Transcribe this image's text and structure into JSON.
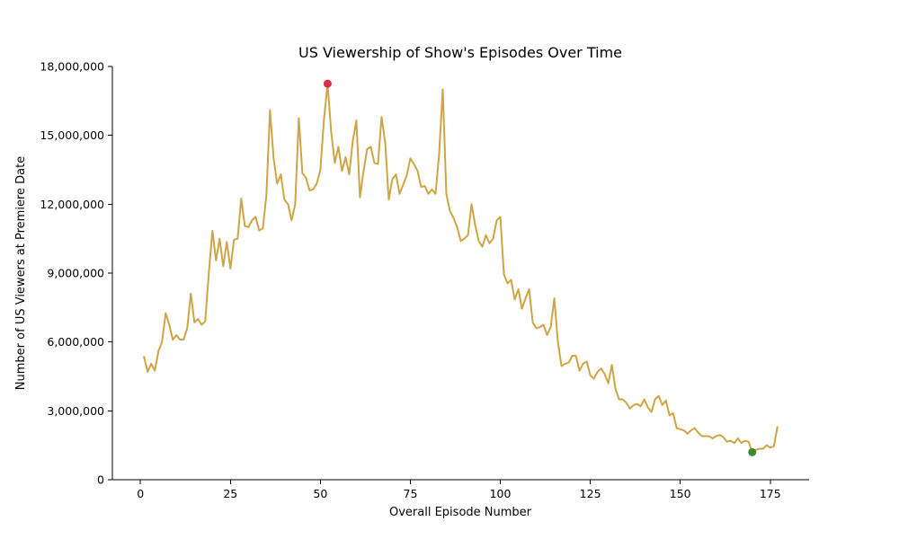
{
  "chart_data": {
    "type": "line",
    "title": "US Viewership of Show's Episodes Over Time",
    "xlabel": "Overall Episode Number",
    "ylabel": "Number of US Viewers at Premiere Date",
    "xlim": [
      -7.8,
      185.8
    ],
    "ylim": [
      0,
      18000000
    ],
    "x_ticks": [
      0,
      25,
      50,
      75,
      100,
      125,
      150,
      175
    ],
    "x_tick_labels": [
      "0",
      "25",
      "50",
      "75",
      "100",
      "125",
      "150",
      "175"
    ],
    "y_ticks": [
      0,
      3000000,
      6000000,
      9000000,
      12000000,
      15000000,
      18000000
    ],
    "y_tick_labels": [
      "0",
      "3,000,000",
      "6,000,000",
      "9,000,000",
      "12,000,000",
      "15,000,000",
      "18,000,000"
    ],
    "grid": false,
    "colors": {
      "line": "#cfa544",
      "max_marker": "#d6314a",
      "min_marker": "#3f8a2a"
    },
    "series": [
      {
        "x": [
          1,
          2,
          3,
          4,
          5,
          6,
          7,
          8,
          9,
          10,
          11,
          12,
          13,
          14,
          15,
          16,
          17,
          18,
          19,
          20,
          21,
          22,
          23,
          24,
          25,
          26,
          27,
          28,
          29,
          30,
          31,
          32,
          33,
          34,
          35,
          36,
          37,
          38,
          39,
          40,
          41,
          42,
          43,
          44,
          45,
          46,
          47,
          48,
          49,
          50,
          51,
          52,
          53,
          54,
          55,
          56,
          57,
          58,
          59,
          60,
          61,
          62,
          63,
          64,
          65,
          66,
          67,
          68,
          69,
          70,
          71,
          72,
          73,
          74,
          75,
          76,
          77,
          78,
          79,
          80,
          81,
          82,
          83,
          84,
          85,
          86,
          87,
          88,
          89,
          90,
          91,
          92,
          93,
          94,
          95,
          96,
          97,
          98,
          99,
          100,
          101,
          102,
          103,
          104,
          105,
          106,
          107,
          108,
          109,
          110,
          111,
          112,
          113,
          114,
          115,
          116,
          117,
          118,
          119,
          120,
          121,
          122,
          123,
          124,
          125,
          126,
          127,
          128,
          129,
          130,
          131,
          132,
          133,
          134,
          135,
          136,
          137,
          138,
          139,
          140,
          141,
          142,
          143,
          144,
          145,
          146,
          147,
          148,
          149,
          150,
          151,
          152,
          153,
          154,
          155,
          156,
          157,
          158,
          159,
          160,
          161,
          162,
          163,
          164,
          165,
          166,
          167,
          168,
          169,
          170,
          171,
          172,
          173,
          174,
          175,
          176,
          177
        ],
        "values": [
          5350000,
          4700000,
          5050000,
          4750000,
          5600000,
          6000000,
          7250000,
          6750000,
          6100000,
          6300000,
          6100000,
          6100000,
          6600000,
          8100000,
          6850000,
          7000000,
          6750000,
          6900000,
          9000000,
          10850000,
          9550000,
          10500000,
          9300000,
          10350000,
          9200000,
          10450000,
          10500000,
          12250000,
          11050000,
          11000000,
          11300000,
          11450000,
          10850000,
          10950000,
          12400000,
          16100000,
          14000000,
          12900000,
          13300000,
          12200000,
          12000000,
          11300000,
          12000000,
          15750000,
          13350000,
          13150000,
          12600000,
          12650000,
          12900000,
          13500000,
          15700000,
          17250000,
          15150000,
          13800000,
          14500000,
          13450000,
          14050000,
          13300000,
          14750000,
          15650000,
          12300000,
          13450000,
          14400000,
          14500000,
          13800000,
          13750000,
          15800000,
          14700000,
          12200000,
          13100000,
          13300000,
          12450000,
          12850000,
          13250000,
          14000000,
          13750000,
          13450000,
          12750000,
          12800000,
          12450000,
          12650000,
          12450000,
          14200000,
          17000000,
          12450000,
          11700000,
          11400000,
          11000000,
          10400000,
          10500000,
          10650000,
          12000000,
          11100000,
          10400000,
          10150000,
          10650000,
          10300000,
          10500000,
          11300000,
          11450000,
          8950000,
          8550000,
          8700000,
          7850000,
          8300000,
          7450000,
          7900000,
          8300000,
          6850000,
          6600000,
          6650000,
          6750000,
          6300000,
          6650000,
          7900000,
          6000000,
          4950000,
          5050000,
          5100000,
          5400000,
          5400000,
          4750000,
          5050000,
          5150000,
          4550000,
          4400000,
          4700000,
          4850000,
          4600000,
          4200000,
          5000000,
          3950000,
          3500000,
          3500000,
          3350000,
          3100000,
          3250000,
          3300000,
          3200000,
          3500000,
          3150000,
          2950000,
          3500000,
          3650000,
          3250000,
          3450000,
          2800000,
          2900000,
          2250000,
          2200000,
          2150000,
          2000000,
          2150000,
          2250000,
          2050000,
          1900000,
          1900000,
          1900000,
          1800000,
          1900000,
          1950000,
          1850000,
          1650000,
          1700000,
          1600000,
          1800000,
          1600000,
          1700000,
          1650000,
          1200000,
          1300000,
          1350000,
          1350000,
          1500000,
          1400000,
          1450000,
          2300000
        ]
      }
    ],
    "highlights": [
      {
        "label": "max",
        "x": 52,
        "y": 17250000
      },
      {
        "label": "min",
        "x": 170,
        "y": 1200000
      }
    ]
  }
}
